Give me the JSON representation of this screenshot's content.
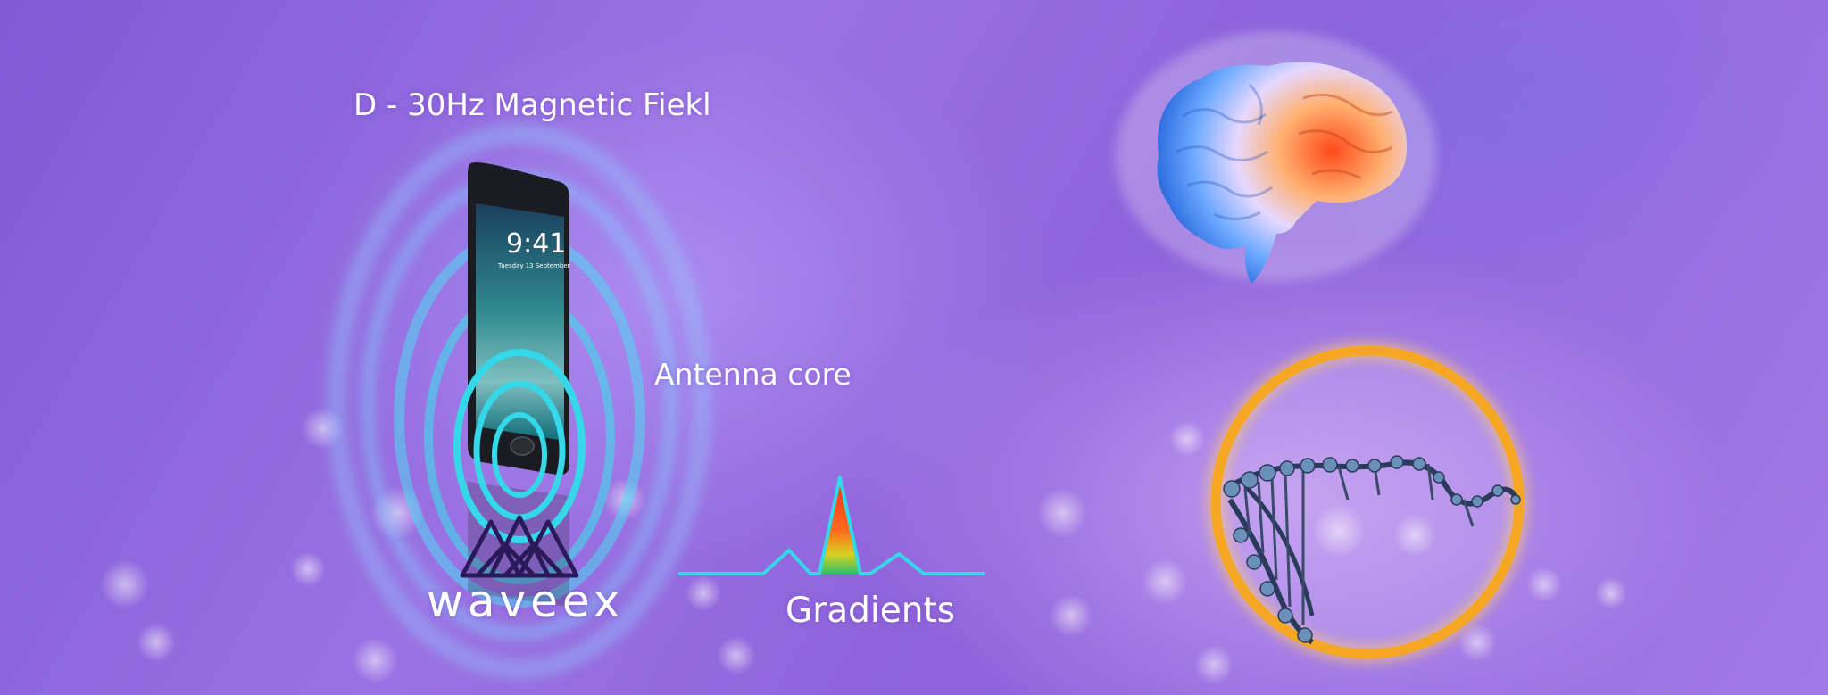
{
  "labels": {
    "field": "D - 30Hz Magnetic Fiekl",
    "antenna": "Antenna core",
    "gradients": "Gradients",
    "brand": "waveex"
  },
  "phone": {
    "time": "9:41",
    "date": "Tuesday 13 September"
  },
  "icons": {
    "logo": "waveex-triangle-logo-icon",
    "phone": "smartphone-icon",
    "brain": "brain-icon",
    "dna": "dna-helix-icon",
    "waves": "magnetic-field-waves-icon",
    "pulse": "gradient-pulse-icon"
  },
  "colors": {
    "background": "#8a5fd6",
    "wave": "#35d8e8",
    "ring": "#f5a623",
    "brain_cool": "#4aa3ff",
    "brain_warm": "#ff6a2b",
    "logo": "#2a1a5a"
  }
}
